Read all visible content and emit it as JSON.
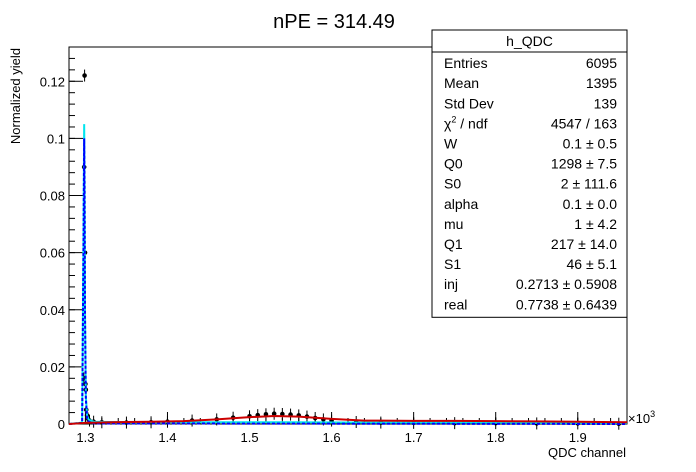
{
  "chart_data": {
    "type": "line",
    "title": "nPE = 314.49",
    "xlabel": "QDC channel",
    "ylabel": "Normalized yield",
    "x_multiplier_label": "×10",
    "x_multiplier_exp": "3",
    "xlim": [
      1.28,
      1.96
    ],
    "ylim": [
      0,
      0.132
    ],
    "x_ticks": [
      {
        "value": 1.3,
        "label": "1.3"
      },
      {
        "value": 1.4,
        "label": "1.4"
      },
      {
        "value": 1.5,
        "label": "1.5"
      },
      {
        "value": 1.6,
        "label": "1.6"
      },
      {
        "value": 1.7,
        "label": "1.7"
      },
      {
        "value": 1.8,
        "label": "1.8"
      },
      {
        "value": 1.9,
        "label": "1.9"
      }
    ],
    "y_ticks": [
      {
        "value": 0,
        "label": "0"
      },
      {
        "value": 0.02,
        "label": "0.02"
      },
      {
        "value": 0.04,
        "label": "0.04"
      },
      {
        "value": 0.06,
        "label": "0.06"
      },
      {
        "value": 0.08,
        "label": "0.08"
      },
      {
        "value": 0.1,
        "label": "0.1"
      },
      {
        "value": 0.12,
        "label": "0.12"
      }
    ],
    "series": [
      {
        "kind": "points",
        "color": "#000000",
        "x": [
          1.298,
          1.2985,
          1.299,
          1.2995,
          1.3,
          1.3005,
          1.301,
          1.302,
          1.303,
          1.305,
          1.31,
          1.32,
          1.35,
          1.38,
          1.4,
          1.43,
          1.46,
          1.48,
          1.5,
          1.51,
          1.52,
          1.53,
          1.54,
          1.55,
          1.56,
          1.57,
          1.58,
          1.59,
          1.6,
          1.63,
          1.66,
          1.7,
          1.75,
          1.8,
          1.85,
          1.9,
          1.95
        ],
        "y": [
          0.016,
          0.09,
          0.122,
          0.06,
          0.014,
          0.012,
          0.005,
          0.003,
          0.002,
          0.0012,
          0.0008,
          0.0006,
          0.0005,
          0.0006,
          0.0008,
          0.0012,
          0.0016,
          0.0022,
          0.0027,
          0.0031,
          0.0034,
          0.0036,
          0.0035,
          0.0033,
          0.003,
          0.0026,
          0.0021,
          0.0016,
          0.0012,
          0.0007,
          0.0005,
          0.0004,
          0.0003,
          0.0003,
          0.0002,
          0.0002,
          0.0001
        ]
      },
      {
        "kind": "curve",
        "style": "solid",
        "color": "#00e5ee",
        "x": [
          1.28,
          1.296,
          1.2975,
          1.2985,
          1.299,
          1.2995,
          1.3005,
          1.302,
          1.304,
          1.31,
          1.35,
          1.45,
          1.55,
          1.65,
          1.75,
          1.85,
          1.96
        ],
        "y": [
          0,
          0.0005,
          0.06,
          0.105,
          0.085,
          0.04,
          0.01,
          0.003,
          0.0015,
          0.0008,
          0.0006,
          0.0006,
          0.0006,
          0.0005,
          0.0005,
          0.0004,
          0.0004
        ]
      },
      {
        "kind": "curve",
        "style": "dashed",
        "color": "#0000ff",
        "x": [
          1.28,
          1.296,
          1.2975,
          1.2985,
          1.299,
          1.2995,
          1.3005,
          1.302,
          1.304,
          1.31,
          1.96
        ],
        "y": [
          0,
          0.0004,
          0.055,
          0.1,
          0.083,
          0.038,
          0.009,
          0.002,
          0.0008,
          0.0002,
          0
        ]
      },
      {
        "kind": "curve",
        "style": "solid",
        "color": "#cc0000",
        "x": [
          1.28,
          1.3,
          1.33,
          1.38,
          1.42,
          1.46,
          1.5,
          1.53,
          1.56,
          1.6,
          1.64,
          1.7,
          1.75,
          1.8,
          1.85,
          1.9,
          1.96
        ],
        "y": [
          0,
          0.0004,
          0.0006,
          0.0008,
          0.001,
          0.0016,
          0.0024,
          0.0028,
          0.0026,
          0.0018,
          0.0012,
          0.0011,
          0.0011,
          0.001,
          0.0009,
          0.0008,
          0.0006
        ]
      }
    ],
    "stats_box": {
      "title": "h_QDC",
      "rows": [
        {
          "label": "Entries",
          "value": "6095"
        },
        {
          "label": "Mean",
          "value": "1395"
        },
        {
          "label": "Std Dev",
          "value": "139"
        },
        {
          "label_main": "χ",
          "label_sup": "2",
          "label_rest": " / ndf",
          "value": "4547 / 163"
        },
        {
          "label": "W",
          "value": "0.1 ± 0.5"
        },
        {
          "label": "Q0",
          "value": "1298 ± 7.5"
        },
        {
          "label": "S0",
          "value": "2 ± 111.6"
        },
        {
          "label": "alpha",
          "value": "0.1 ± 0.0"
        },
        {
          "label": "mu",
          "value": "1 ± 4.2"
        },
        {
          "label": "Q1",
          "value": "217 ± 14.0"
        },
        {
          "label": "S1",
          "value": "46 ± 5.1"
        },
        {
          "label": "inj",
          "value": "0.2713 ± 0.5908"
        },
        {
          "label": "real",
          "value": "0.7738 ± 0.6439"
        }
      ]
    }
  }
}
